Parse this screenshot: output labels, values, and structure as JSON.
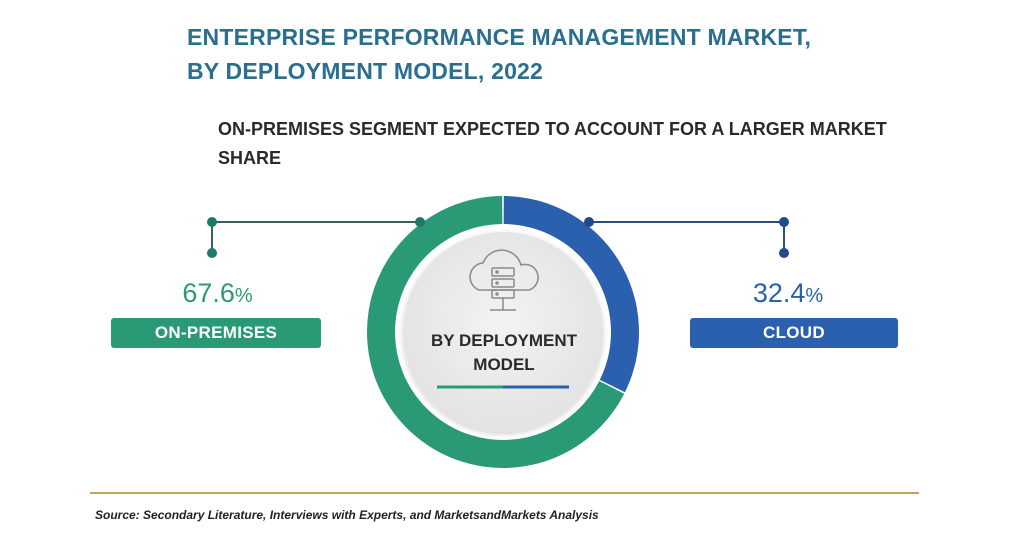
{
  "title_line1": "ENTERPRISE PERFORMANCE MANAGEMENT MARKET,",
  "title_line2": "BY DEPLOYMENT MODEL, 2022",
  "subtitle_line1": "ON-PREMISES SEGMENT EXPECTED TO ACCOUNT FOR A LARGER MARKET",
  "subtitle_line2": "SHARE",
  "center_line1": "BY DEPLOYMENT",
  "center_line2": "MODEL",
  "center_icon": "cloud-server-icon",
  "source": "Source: Secondary Literature, Interviews with Experts, and MarketsandMarkets Analysis",
  "colors": {
    "on_premises": "#2a9a76",
    "cloud": "#2a60ad",
    "title": "#2b6f8f",
    "rule": "#c8a45a"
  },
  "chart_data": {
    "type": "pie",
    "title": "ENTERPRISE PERFORMANCE MANAGEMENT MARKET, BY DEPLOYMENT MODEL, 2022",
    "unit": "%",
    "slices": [
      {
        "label": "ON-PREMISES",
        "value": 67.6,
        "value_text": "67.6",
        "color": "#2a9a76"
      },
      {
        "label": "CLOUD",
        "value": 32.4,
        "value_text": "32.4",
        "color": "#2a60ad"
      }
    ]
  }
}
